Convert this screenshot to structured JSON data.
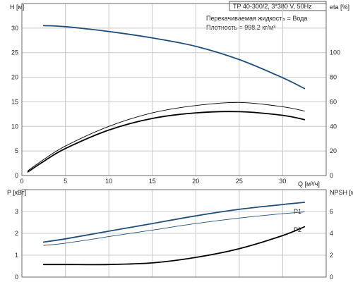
{
  "header": {
    "title": "TP 40-300/2, 3*380 V, 50Hz",
    "liquid": "Перекачиваемая жидкость = Вода",
    "density": "Плотность = 998.2 кг/м³"
  },
  "colors": {
    "blue": "#1f4e79",
    "black": "#000000",
    "grid": "#c8c8c8"
  },
  "chart_data": [
    {
      "type": "line",
      "xlabel": "Q [м³/ч]",
      "ylabel": "H [м]",
      "y2label": "eta [%]",
      "xlim": [
        0,
        35
      ],
      "ylim": [
        0,
        35
      ],
      "y2lim": [
        0,
        140
      ],
      "x_ticks": [
        0,
        5,
        10,
        15,
        20,
        25,
        30
      ],
      "y_ticks": [
        0,
        5,
        10,
        15,
        20,
        25,
        30
      ],
      "y2_ticks": [
        0,
        20,
        40,
        60,
        80,
        100
      ],
      "grid": true,
      "series": [
        {
          "key": "H",
          "axis": "left",
          "color": "#1f4e79",
          "width": 1.8,
          "x": [
            2.5,
            5,
            10,
            15,
            20,
            25,
            30,
            32.5
          ],
          "y": [
            30.5,
            30.3,
            29.3,
            28.0,
            26.3,
            23.6,
            19.9,
            17.7
          ]
        },
        {
          "key": "eta_thin",
          "axis": "right",
          "color": "#000000",
          "width": 0.9,
          "x": [
            0.7,
            2.5,
            5,
            10,
            15,
            20,
            25,
            30,
            32.5
          ],
          "y": [
            4,
            13,
            24,
            40,
            51,
            57,
            59.5,
            56,
            52.5
          ]
        },
        {
          "key": "eta_bold",
          "axis": "right",
          "color": "#000000",
          "width": 1.8,
          "x": [
            0.7,
            2.5,
            5,
            10,
            15,
            20,
            25,
            30,
            32.5
          ],
          "y": [
            3,
            11.5,
            22,
            37,
            46.5,
            51,
            52,
            49,
            45.5
          ]
        }
      ]
    },
    {
      "type": "line",
      "xlabel": "",
      "ylabel": "P [кВт]",
      "y2label": "NPSH [м]",
      "xlim": [
        0,
        35
      ],
      "ylim": [
        0,
        4
      ],
      "y2lim": [
        0,
        8
      ],
      "y_ticks": [
        0,
        1,
        2,
        3
      ],
      "y2_ticks": [
        0,
        2,
        4,
        6
      ],
      "grid": true,
      "series": [
        {
          "name": "P1",
          "axis": "left",
          "color": "#1f4e79",
          "width": 1.8,
          "x": [
            2.5,
            5,
            10,
            15,
            20,
            25,
            30,
            32.5
          ],
          "y": [
            1.6,
            1.75,
            2.1,
            2.45,
            2.8,
            3.1,
            3.32,
            3.42
          ]
        },
        {
          "name": "P2",
          "axis": "left",
          "color": "#1f4e79",
          "width": 0.9,
          "x": [
            2.5,
            5,
            10,
            15,
            20,
            25,
            30,
            32.5
          ],
          "y": [
            1.45,
            1.55,
            1.85,
            2.15,
            2.45,
            2.7,
            2.9,
            2.98
          ]
        },
        {
          "key": "NPSH",
          "axis": "right",
          "color": "#000000",
          "width": 1.8,
          "x": [
            2.5,
            5,
            10,
            15,
            20,
            25,
            30,
            32.5
          ],
          "y": [
            1.15,
            1.15,
            1.15,
            1.3,
            1.8,
            2.6,
            3.8,
            4.6
          ]
        }
      ]
    }
  ]
}
